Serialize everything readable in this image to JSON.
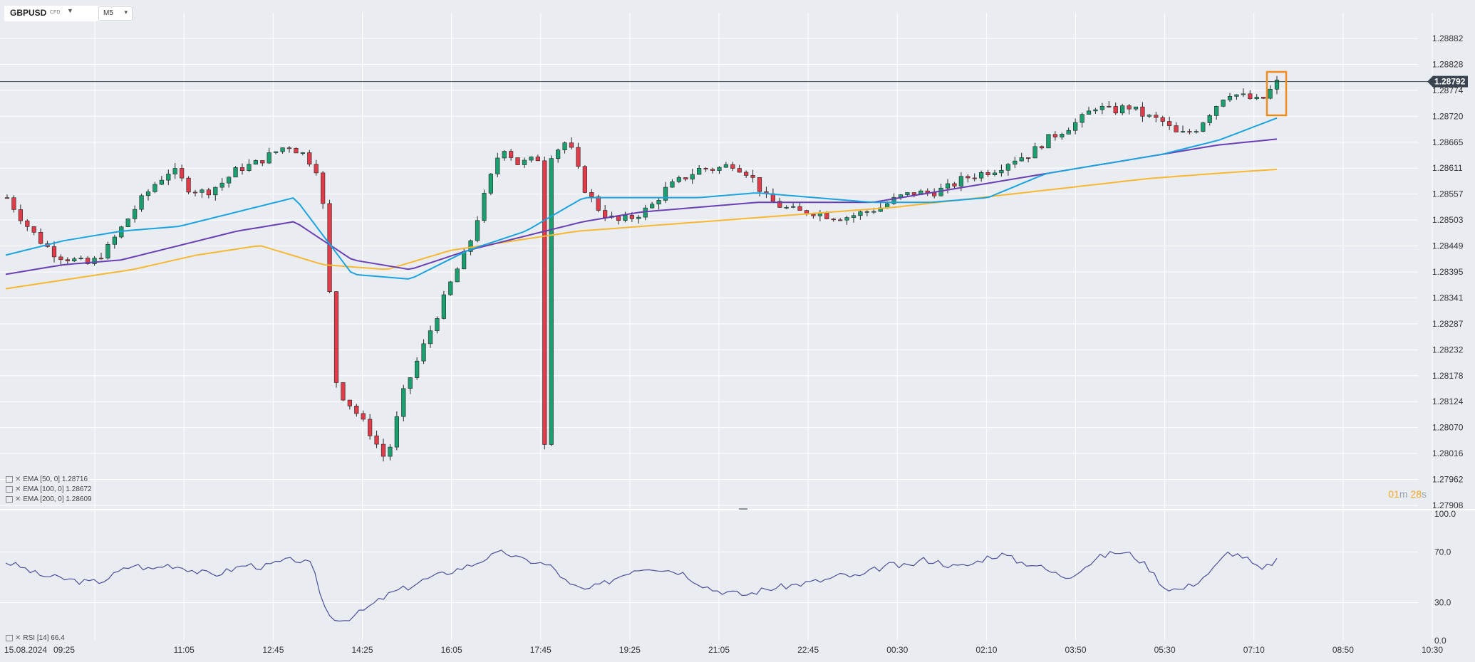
{
  "header": {
    "symbol": "GBPUSD",
    "type_badge": "CFD",
    "timeframe": "M5"
  },
  "indicators": [
    {
      "label": "EMA [50, 0] 1.28716",
      "color": "#1aa3e0"
    },
    {
      "label": "EMA [100, 0] 1.28672",
      "color": "#6a3fb5"
    },
    {
      "label": "EMA [200, 0] 1.28609",
      "color": "#f7b731"
    }
  ],
  "rsi_label": "RSI [14] 66.4",
  "countdown": {
    "minutes": "01",
    "m": "m",
    "seconds": "28",
    "s": "s"
  },
  "colors": {
    "up": "#1aa06f",
    "down": "#e23b4a",
    "rsi_line": "#4b4f9c",
    "current_box": "#f28c1b"
  },
  "chart_data": {
    "type": "candlestick",
    "y_ticks": [
      "1.28882",
      "1.28828",
      "1.28774",
      "1.28720",
      "1.28665",
      "1.28611",
      "1.28557",
      "1.28503",
      "1.28449",
      "1.28395",
      "1.28341",
      "1.28287",
      "1.28232",
      "1.28178",
      "1.28124",
      "1.28070",
      "1.28016",
      "1.27962",
      "1.27908"
    ],
    "ylim": [
      1.27908,
      1.28882
    ],
    "current_price": "1.28792",
    "x_labels": [
      "15.08.2024",
      "09:25",
      "11:05",
      "12:45",
      "14:25",
      "16:05",
      "17:45",
      "19:25",
      "21:05",
      "22:45",
      "00:30",
      "02:10",
      "03:50",
      "05:30",
      "07:10",
      "08:50",
      "10:30"
    ],
    "price_path": [
      1.2855,
      1.285,
      1.2846,
      1.2843,
      1.2842,
      1.2841,
      1.2844,
      1.2849,
      1.2854,
      1.2858,
      1.2861,
      1.2857,
      1.2856,
      1.2858,
      1.2861,
      1.2862,
      1.2864,
      1.2866,
      1.2864,
      1.286,
      1.2815,
      1.2811,
      1.2806,
      1.28,
      1.2814,
      1.2822,
      1.283,
      1.2838,
      1.2845,
      1.2856,
      1.2866,
      1.2862,
      1.2863,
      1.2864,
      1.2867,
      1.2857,
      1.2852,
      1.285,
      1.2851,
      1.2853,
      1.2857,
      1.2859,
      1.2861,
      1.2861,
      1.2862,
      1.286,
      1.2855,
      1.2853,
      1.2852,
      1.2852,
      1.2851,
      1.2851,
      1.2852,
      1.2853,
      1.2855,
      1.2856,
      1.2856,
      1.2857,
      1.2859,
      1.286,
      1.2861,
      1.2863,
      1.2864,
      1.2867,
      1.2869,
      1.2871,
      1.2874,
      1.2873,
      1.2874,
      1.2872,
      1.2871,
      1.2868,
      1.2869,
      1.2873,
      1.2877,
      1.2876,
      1.2875,
      1.2879
    ],
    "ema_50": [
      1.2843,
      1.2846,
      1.2848,
      1.2849,
      1.2852,
      1.2855,
      1.2839,
      1.2838,
      1.2844,
      1.2848,
      1.2855,
      1.2855,
      1.2855,
      1.2856,
      1.2855,
      1.2854,
      1.2854,
      1.2855,
      1.286,
      1.2862,
      1.2864,
      1.2867,
      1.28716
    ],
    "ema_100": [
      1.2839,
      1.2841,
      1.2842,
      1.2845,
      1.2848,
      1.285,
      1.2842,
      1.284,
      1.2844,
      1.2847,
      1.285,
      1.2852,
      1.2853,
      1.2854,
      1.2854,
      1.2854,
      1.2856,
      1.2858,
      1.286,
      1.2862,
      1.2864,
      1.2866,
      1.28672
    ],
    "ema_200": [
      1.2836,
      1.2838,
      1.284,
      1.2843,
      1.2845,
      1.2841,
      1.284,
      1.2844,
      1.2846,
      1.2848,
      1.2849,
      1.285,
      1.2851,
      1.2852,
      1.2853,
      1.28545,
      1.2856,
      1.28575,
      1.2859,
      1.286,
      1.28609
    ],
    "rsi_ticks": [
      "100.0",
      "70.0",
      "30.0",
      "0.0"
    ],
    "rsi_path": [
      62,
      58,
      52,
      50,
      48,
      46,
      47,
      54,
      60,
      56,
      60,
      58,
      54,
      52,
      56,
      60,
      58,
      62,
      64,
      60,
      20,
      16,
      22,
      30,
      38,
      42,
      48,
      52,
      56,
      60,
      66,
      70,
      64,
      62,
      58,
      44,
      40,
      44,
      50,
      56,
      58,
      56,
      54,
      46,
      40,
      38,
      36,
      40,
      42,
      44,
      46,
      48,
      52,
      50,
      56,
      60,
      58,
      64,
      62,
      58,
      60,
      66,
      68,
      62,
      60,
      54,
      50,
      58,
      66,
      70,
      68,
      58,
      42,
      40,
      46,
      56,
      70,
      66,
      55,
      64
    ]
  }
}
